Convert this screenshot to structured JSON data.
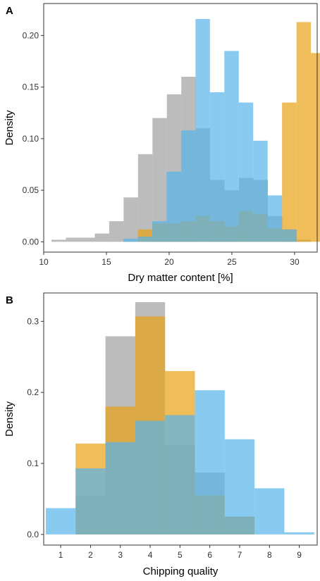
{
  "colors": {
    "gray": "#9f9f9f",
    "orange": "#e9a115",
    "blue": "#56b4e9",
    "frame": "#333333"
  },
  "chart_data": [
    {
      "panel": "A",
      "type": "histogram",
      "xlabel": "Dry matter content [%]",
      "ylabel": "Density",
      "xlim": [
        10,
        31.8
      ],
      "ylim": [
        -0.01,
        0.231
      ],
      "xticks": [
        10,
        15,
        20,
        25,
        30
      ],
      "yticks": [
        0.0,
        0.05,
        0.1,
        0.15,
        0.2
      ],
      "ytick_labels": [
        "0.00",
        "0.05",
        "0.10",
        "0.15",
        "0.20"
      ],
      "bin_width": 1.15,
      "opacity": 0.7,
      "series": [
        {
          "color": "#9f9f9f",
          "bins_start": 10.62,
          "values": [
            0.002,
            0.004,
            0.004,
            0.008,
            0.02,
            0.043,
            0.085,
            0.12,
            0.143,
            0.16,
            0.11,
            0.06,
            0.05,
            0.062,
            0.06,
            0.025,
            0.012,
            0.002
          ]
        },
        {
          "color": "#e9a115",
          "bins_start": 17.5,
          "values": [
            0.012,
            0.018,
            0.018,
            0.02,
            0.025,
            0.02,
            0.015,
            0.03,
            0.027,
            0.013,
            0.135,
            0.213,
            0.183,
            0.133,
            0.083,
            0.013
          ]
        },
        {
          "color": "#56b4e9",
          "bins_start": 16.35,
          "values": [
            0.003,
            0.005,
            0.02,
            0.068,
            0.108,
            0.216,
            0.145,
            0.185,
            0.135,
            0.098,
            0.045,
            0.012
          ]
        }
      ]
    },
    {
      "panel": "B",
      "type": "histogram",
      "xlabel": "Chipping quality",
      "ylabel": "Density",
      "xlim": [
        0.43,
        9.6
      ],
      "ylim": [
        -0.015,
        0.34
      ],
      "xticks": [
        1,
        2,
        3,
        4,
        5,
        6,
        7,
        8,
        9
      ],
      "yticks": [
        0.0,
        0.1,
        0.2,
        0.3
      ],
      "ytick_labels": [
        "0.0",
        "0.1",
        "0.2",
        "0.3"
      ],
      "bin_width": 1.0,
      "opacity": 0.7,
      "series": [
        {
          "color": "#9f9f9f",
          "bins_start": 0.5,
          "values": [
            0.0,
            0.054,
            0.279,
            0.327,
            0.126,
            0.087,
            0.025,
            0.0,
            0.0
          ]
        },
        {
          "color": "#e9a115",
          "bins_start": 0.5,
          "values": [
            0.0,
            0.128,
            0.18,
            0.307,
            0.23,
            0.055,
            0.025,
            0.0,
            0.0
          ]
        },
        {
          "color": "#56b4e9",
          "bins_start": 0.5,
          "values": [
            0.037,
            0.093,
            0.13,
            0.16,
            0.168,
            0.203,
            0.134,
            0.065,
            0.003
          ]
        }
      ]
    }
  ]
}
